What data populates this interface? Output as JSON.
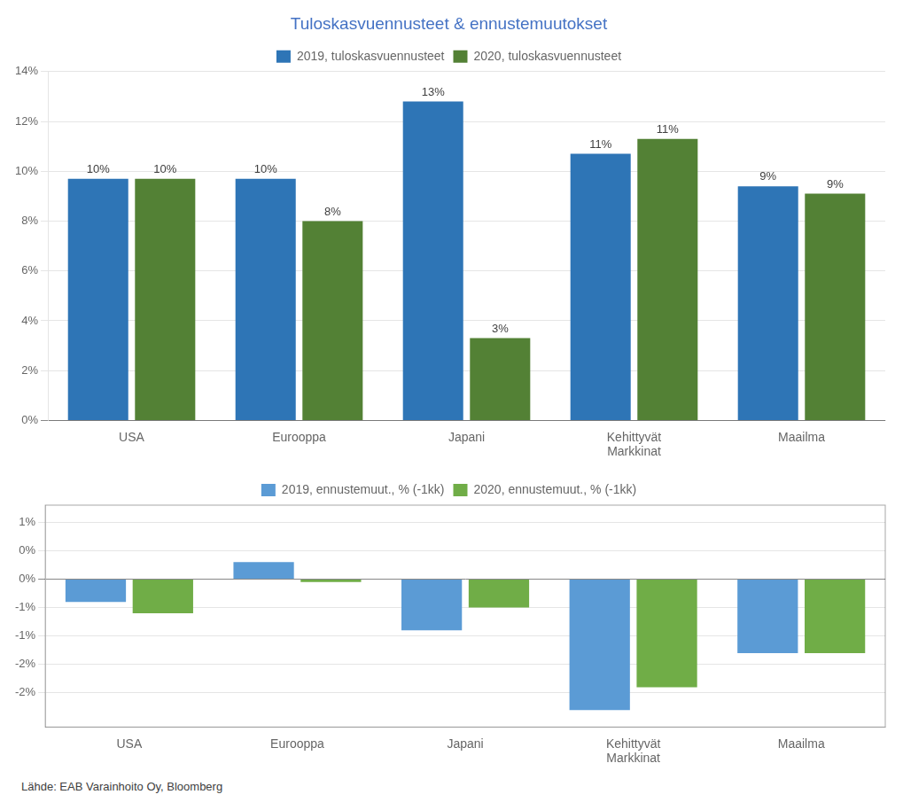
{
  "chart_data": [
    {
      "type": "bar",
      "title": "Tuloskasvuennusteet & ennustemuutokset",
      "categories": [
        "USA",
        "Eurooppa",
        "Japani",
        "Kehittyvät\nMarkkinat",
        "Maailma"
      ],
      "series": [
        {
          "name": "2019, tuloskasvuennusteet",
          "color": "#2E75B6",
          "values": [
            9.7,
            9.7,
            12.8,
            10.7,
            9.4
          ],
          "value_labels": [
            "10%",
            "10%",
            "13%",
            "11%",
            "9%"
          ]
        },
        {
          "name": "2020, tuloskasvuennusteet",
          "color": "#538135",
          "values": [
            9.7,
            8.0,
            3.3,
            11.3,
            9.1
          ],
          "value_labels": [
            "10%",
            "8%",
            "3%",
            "11%",
            "9%"
          ]
        }
      ],
      "ylim": [
        0,
        14
      ],
      "yticks": [
        {
          "value": 0,
          "label": "0%"
        },
        {
          "value": 2,
          "label": "2%"
        },
        {
          "value": 4,
          "label": "4%"
        },
        {
          "value": 6,
          "label": "6%"
        },
        {
          "value": 8,
          "label": "8%"
        },
        {
          "value": 10,
          "label": "10%"
        },
        {
          "value": 12,
          "label": "12%"
        },
        {
          "value": 14,
          "label": "14%"
        }
      ],
      "grid": true,
      "legend": "top",
      "data_labels": true
    },
    {
      "type": "bar",
      "categories": [
        "USA",
        "Eurooppa",
        "Japani",
        "Kehittyvät\nMarkkinat",
        "Maailma"
      ],
      "series": [
        {
          "name": "2019, ennustemuut., % (-1kk)",
          "color": "#5B9BD5",
          "values": [
            -0.4,
            0.3,
            -0.9,
            -2.3,
            -1.3
          ]
        },
        {
          "name": "2020, ennustemuut., % (-1kk)",
          "color": "#70AD47",
          "values": [
            -0.6,
            -0.05,
            -0.5,
            -1.9,
            -1.3
          ]
        }
      ],
      "ylim": [
        -2.6,
        1.3
      ],
      "yticks": [
        {
          "value": -2.0,
          "label": "-2%"
        },
        {
          "value": -1.5,
          "label": "-2%"
        },
        {
          "value": -1.0,
          "label": "-1%"
        },
        {
          "value": -0.5,
          "label": "-1%"
        },
        {
          "value": 0.0,
          "label": "0%"
        },
        {
          "value": 0.5,
          "label": "0%"
        },
        {
          "value": 1.0,
          "label": "1%"
        }
      ],
      "grid": true,
      "legend": "top",
      "annotations": [
        "Lähde: EAB Varainhoito Oy, Bloomberg"
      ]
    }
  ]
}
